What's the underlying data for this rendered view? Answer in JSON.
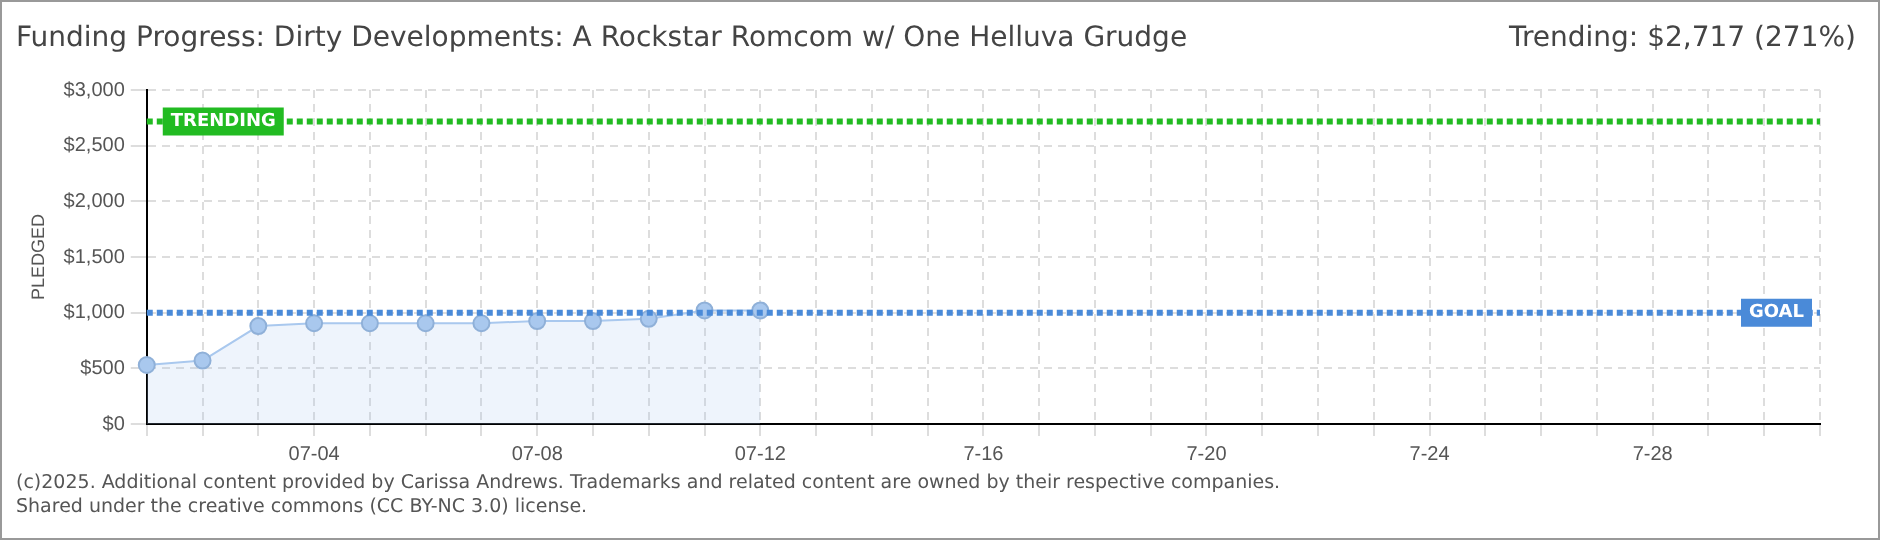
{
  "chart_data": {
    "type": "area",
    "title": "Funding Progress: Dirty Developments: A Rockstar Romcom w/ One Helluva Grudge",
    "ylabel": "PLEDGED",
    "categories": [
      null,
      null,
      null,
      "07-04",
      null,
      null,
      null,
      "07-08",
      null,
      null,
      null,
      "07-12",
      null,
      null,
      null,
      "7-16",
      null,
      null,
      null,
      "7-20",
      null,
      null,
      null,
      "7-24",
      null,
      null,
      null,
      "7-28",
      null,
      null,
      null
    ],
    "series": [
      {
        "color": "#a9c8ee",
        "values": [
          530,
          570,
          880,
          905,
          905,
          905,
          905,
          925,
          925,
          945,
          1020,
          1020,
          null,
          null,
          null,
          null,
          null,
          null,
          null,
          null,
          null,
          null,
          null,
          null,
          null,
          null,
          null,
          null,
          null,
          null,
          null
        ]
      }
    ],
    "ylim": [
      0,
      3000
    ],
    "yticks": [
      {
        "value": 0,
        "label": "$0"
      },
      {
        "value": 500,
        "label": "$500"
      },
      {
        "value": 1000,
        "label": "$1,000"
      },
      {
        "value": 1500,
        "label": "$1,500"
      },
      {
        "value": 2000,
        "label": "$2,000"
      },
      {
        "value": 2500,
        "label": "$2,500"
      },
      {
        "value": 3000,
        "label": "$3,000"
      }
    ],
    "ref_lines": [
      {
        "axis": "y",
        "value": 2717,
        "label": "TRENDING",
        "color": "#22bb22",
        "line_style": "dotted"
      },
      {
        "axis": "y",
        "value": 1000,
        "label": "GOAL",
        "color": "#4a8ad8",
        "line_style": "dotted"
      }
    ],
    "annotations": [
      "Trending:  $2,717 (271%)",
      "(c)2025. Additional content provided by Carissa Andrews. Trademarks and related content are owned by their respective companies.",
      "Shared under the creative commons (CC BY-NC 3.0) license."
    ],
    "grid": true,
    "legend": false,
    "marker": "circle",
    "line_style": "solid"
  }
}
